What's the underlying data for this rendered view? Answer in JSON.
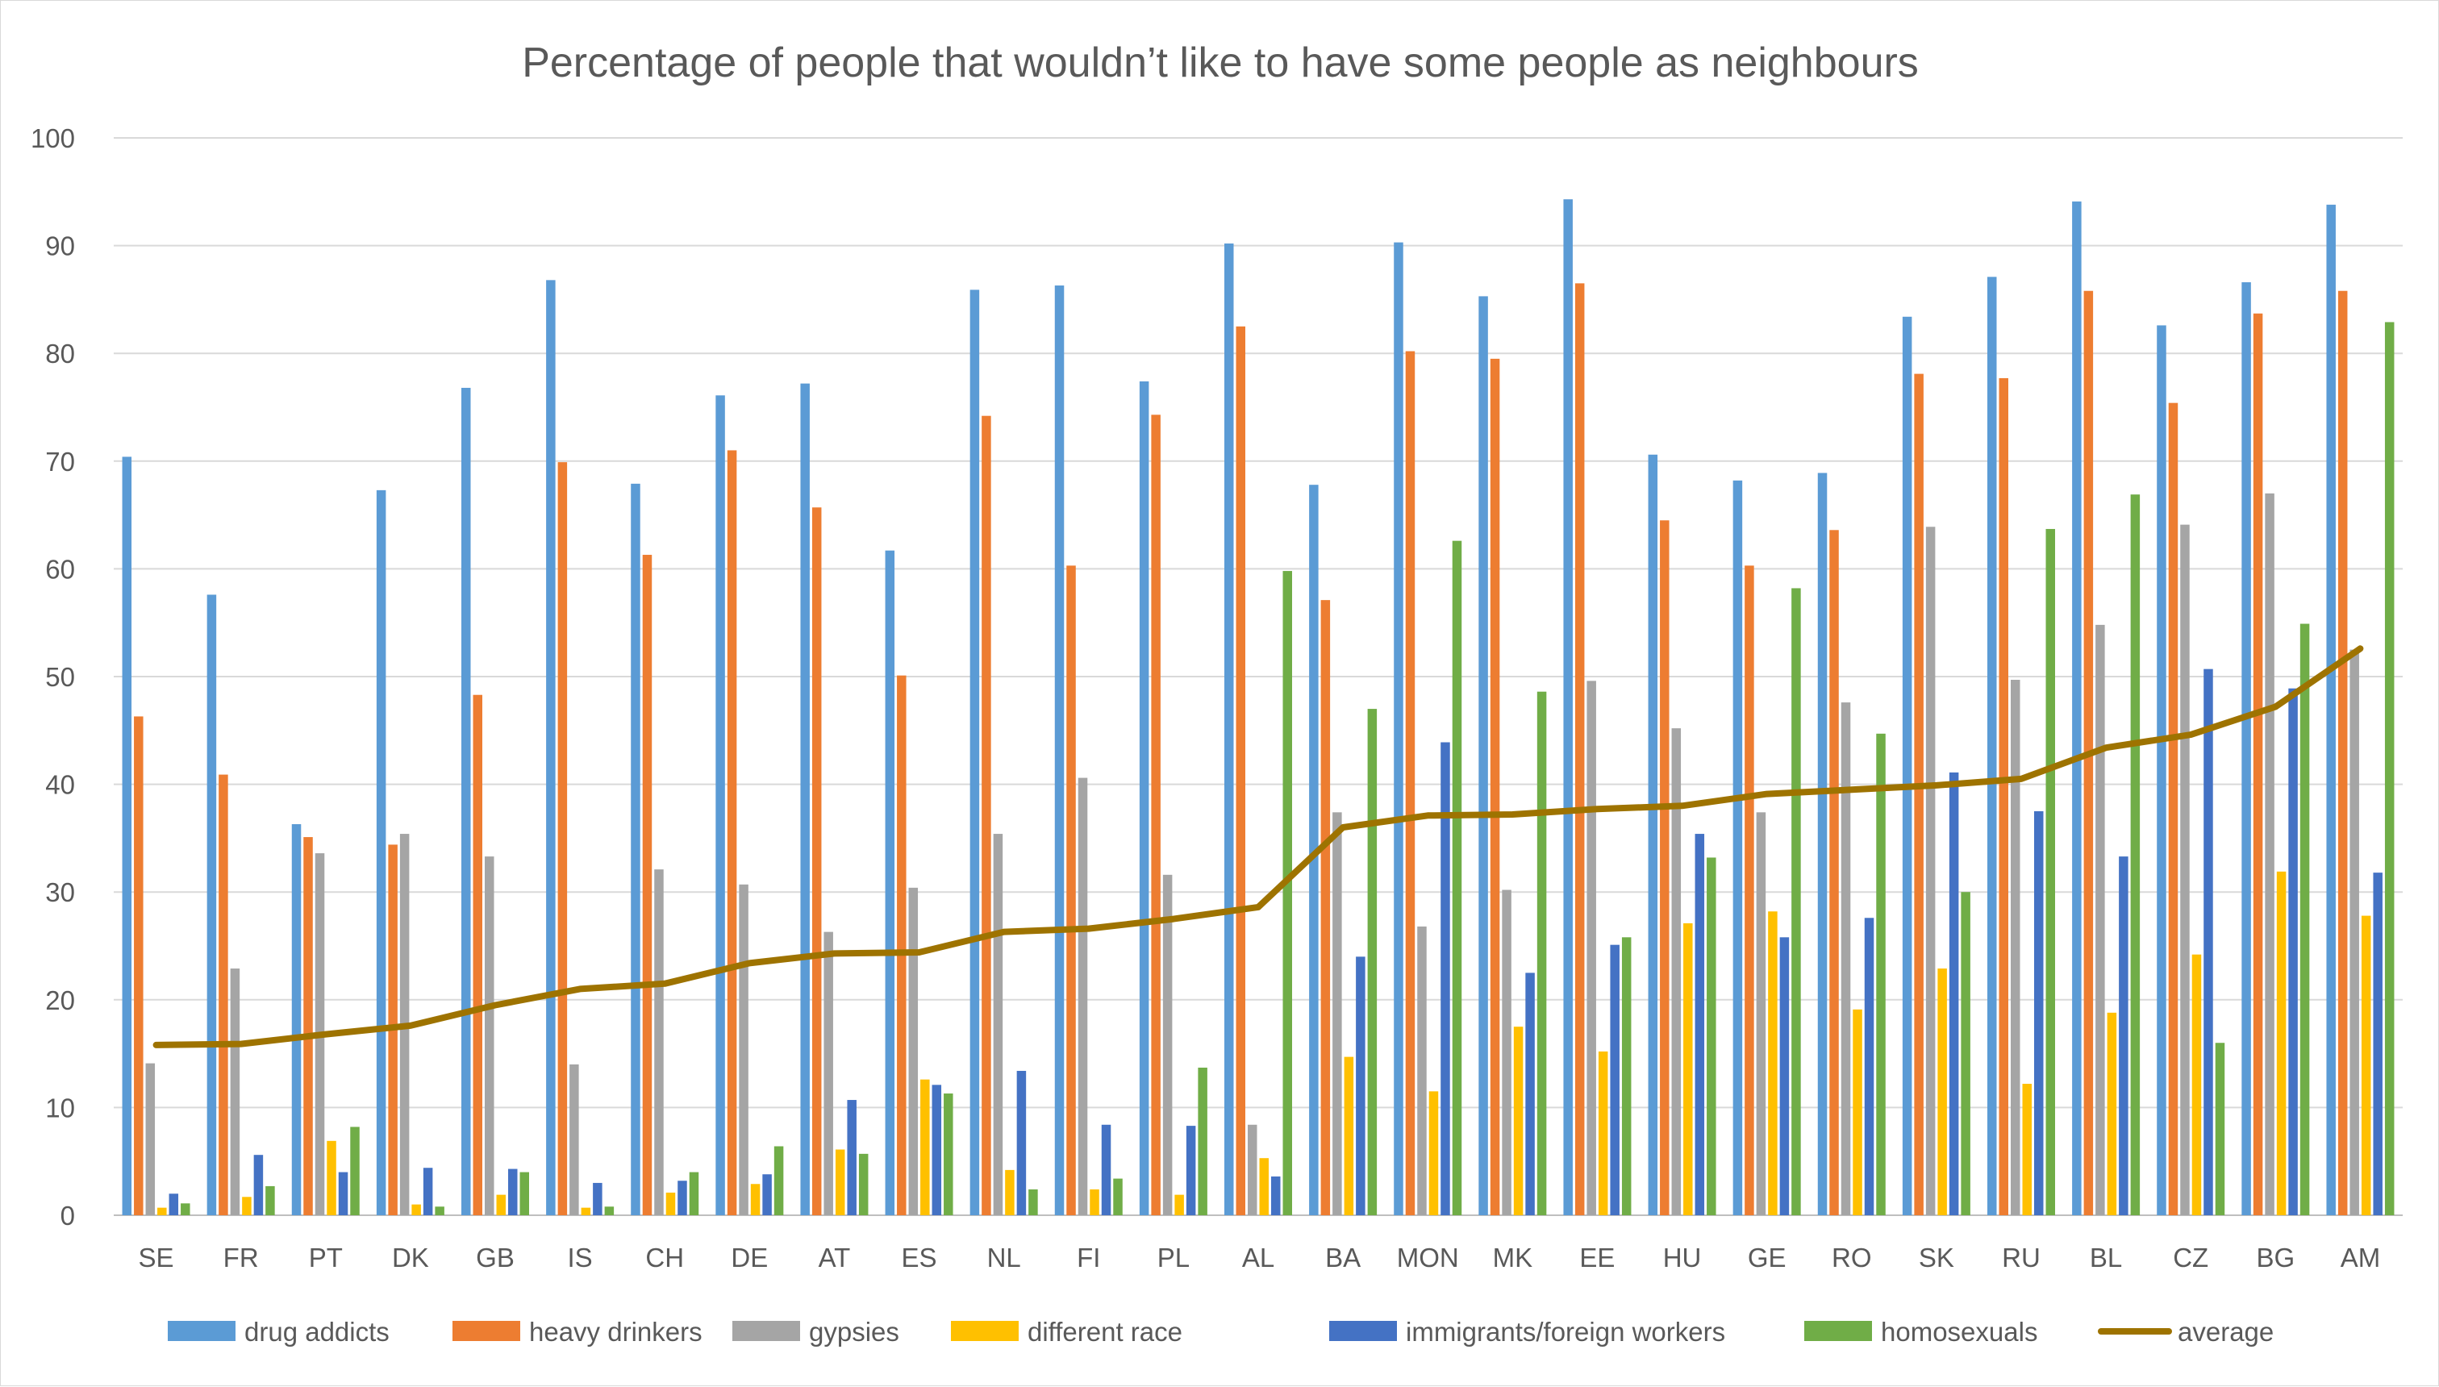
{
  "chart_data": {
    "type": "bar",
    "title": "Percentage of people that wouldn’t like to have some people as neighbours",
    "xlabel": "",
    "ylabel": "",
    "ylim": [
      0,
      100
    ],
    "yticks": [
      0,
      10,
      20,
      30,
      40,
      50,
      60,
      70,
      80,
      90,
      100
    ],
    "grid": true,
    "legend_position": "bottom",
    "categories": [
      "SE",
      "FR",
      "PT",
      "DK",
      "GB",
      "IS",
      "CH",
      "DE",
      "AT",
      "ES",
      "NL",
      "FI",
      "PL",
      "AL",
      "BA",
      "MON",
      "MK",
      "EE",
      "HU",
      "GE",
      "RO",
      "SK",
      "RU",
      "BL",
      "CZ",
      "BG",
      "AM"
    ],
    "series": [
      {
        "name": "drug addicts",
        "type": "bar",
        "color": "#5B9BD5",
        "values": [
          70.4,
          57.6,
          36.3,
          67.3,
          76.8,
          86.8,
          67.9,
          76.1,
          77.2,
          61.7,
          85.9,
          86.3,
          77.4,
          90.2,
          67.8,
          90.3,
          85.3,
          94.3,
          70.6,
          68.2,
          68.9,
          83.4,
          87.1,
          94.1,
          82.6,
          86.6,
          93.8
        ]
      },
      {
        "name": "heavy drinkers",
        "type": "bar",
        "color": "#ED7D31",
        "values": [
          46.3,
          40.9,
          35.1,
          34.4,
          48.3,
          69.9,
          61.3,
          71.0,
          65.7,
          50.1,
          74.2,
          60.3,
          74.3,
          82.5,
          57.1,
          80.2,
          79.5,
          86.5,
          64.5,
          60.3,
          63.6,
          78.1,
          77.7,
          85.8,
          75.4,
          83.7,
          85.8
        ]
      },
      {
        "name": "gypsies",
        "type": "bar",
        "color": "#A5A5A5",
        "values": [
          14.1,
          22.9,
          33.6,
          35.4,
          33.3,
          14.0,
          32.1,
          30.7,
          26.3,
          30.4,
          35.4,
          40.6,
          31.6,
          8.4,
          37.4,
          26.8,
          30.2,
          49.6,
          45.2,
          37.4,
          47.6,
          63.9,
          49.7,
          54.8,
          64.1,
          67.0,
          52.5
        ]
      },
      {
        "name": "different race",
        "type": "bar",
        "color": "#FFC000",
        "values": [
          0.7,
          1.7,
          6.9,
          1.0,
          1.9,
          0.7,
          2.1,
          2.9,
          6.1,
          12.6,
          4.2,
          2.4,
          1.9,
          5.3,
          14.7,
          11.5,
          17.5,
          15.2,
          27.1,
          28.2,
          19.1,
          22.9,
          12.2,
          18.8,
          24.2,
          31.9,
          27.8
        ]
      },
      {
        "name": "immigrants/foreign workers",
        "type": "bar",
        "color": "#4472C4",
        "values": [
          2.0,
          5.6,
          4.0,
          4.4,
          4.3,
          3.0,
          3.2,
          3.8,
          10.7,
          12.1,
          13.4,
          8.4,
          8.3,
          3.6,
          24.0,
          43.9,
          22.5,
          25.1,
          35.4,
          25.8,
          27.6,
          41.1,
          37.5,
          33.3,
          50.7,
          48.9,
          31.8
        ]
      },
      {
        "name": "homosexuals",
        "type": "bar",
        "color": "#70AD47",
        "values": [
          1.1,
          2.7,
          8.2,
          0.8,
          4.0,
          0.8,
          4.0,
          6.4,
          5.7,
          11.3,
          2.4,
          3.4,
          13.7,
          59.8,
          47.0,
          62.6,
          48.6,
          25.8,
          33.2,
          58.2,
          44.7,
          30.0,
          63.7,
          66.9,
          16.0,
          54.9,
          82.9
        ]
      },
      {
        "name": "average",
        "type": "line",
        "color": "#9E7300",
        "values": [
          15.8,
          15.9,
          16.8,
          17.6,
          19.5,
          21.0,
          21.5,
          23.4,
          24.3,
          24.4,
          26.3,
          26.6,
          27.5,
          28.6,
          36.0,
          37.1,
          37.2,
          37.7,
          38.0,
          39.1,
          39.5,
          39.9,
          40.5,
          43.4,
          44.6,
          47.2,
          52.6
        ]
      }
    ]
  }
}
